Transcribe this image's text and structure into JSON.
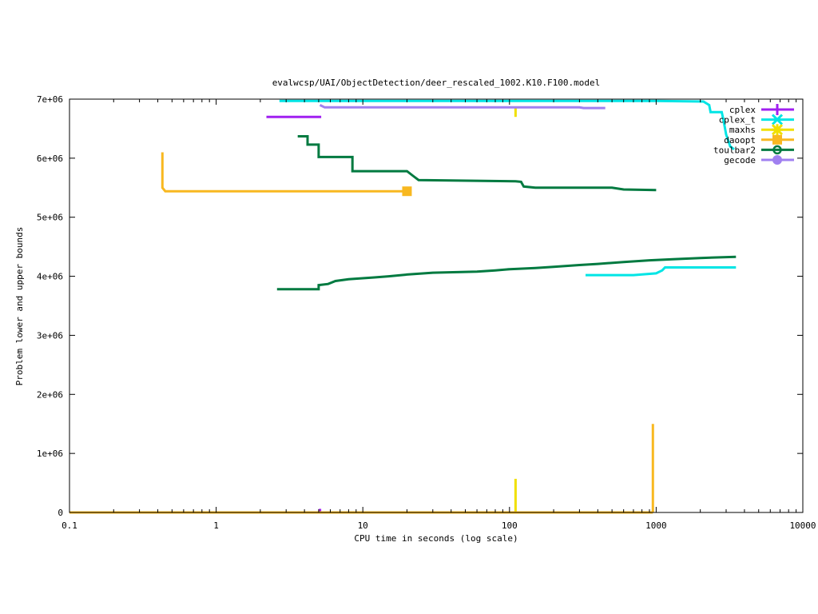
{
  "chart_data": {
    "type": "line",
    "title": "evalwcsp/UAI/ObjectDetection/deer_rescaled_1002.K10.F100.model",
    "xlabel": "CPU time in seconds (log scale)",
    "ylabel": "Problem lower and upper bounds",
    "xscale": "log",
    "xlim": [
      0.1,
      10000
    ],
    "ylim": [
      0,
      7000000
    ],
    "x_ticks": [
      {
        "value": 0.1,
        "label": "0.1"
      },
      {
        "value": 1,
        "label": "1"
      },
      {
        "value": 10,
        "label": "10"
      },
      {
        "value": 100,
        "label": "100"
      },
      {
        "value": 1000,
        "label": "1000"
      },
      {
        "value": 10000,
        "label": "10000"
      }
    ],
    "y_ticks": [
      {
        "value": 0,
        "label": "0"
      },
      {
        "value": 1000000,
        "label": "1e+06"
      },
      {
        "value": 2000000,
        "label": "2e+06"
      },
      {
        "value": 3000000,
        "label": "3e+06"
      },
      {
        "value": 4000000,
        "label": "4e+06"
      },
      {
        "value": 5000000,
        "label": "5e+06"
      },
      {
        "value": 6000000,
        "label": "6e+06"
      },
      {
        "value": 7000000,
        "label": "7e+06"
      }
    ],
    "grid": false,
    "legend_position": "top-right",
    "series": [
      {
        "name": "cplex",
        "color": "#a020f0",
        "marker": "plus",
        "segments": [
          [
            [
              2.2,
              6700000
            ],
            [
              5.2,
              6700000
            ]
          ],
          [
            [
              5.0,
              40000
            ],
            [
              5.2,
              40000
            ]
          ]
        ]
      },
      {
        "name": "cplex_t",
        "color": "#00e5e5",
        "marker": "cross",
        "segments": [
          [
            [
              2.7,
              6970000
            ],
            [
              1000,
              6970000
            ],
            [
              2100,
              6960000
            ],
            [
              2300,
              6900000
            ],
            [
              2350,
              6780000
            ],
            [
              2800,
              6780000
            ],
            [
              2900,
              6600000
            ],
            [
              3000,
              6400000
            ],
            [
              3200,
              6200000
            ],
            [
              3400,
              6150000
            ]
          ],
          [
            [
              330,
              4020000
            ],
            [
              700,
              4020000
            ],
            [
              1000,
              4050000
            ],
            [
              1100,
              4100000
            ],
            [
              1150,
              4150000
            ],
            [
              3500,
              4150000
            ]
          ]
        ]
      },
      {
        "name": "maxhs",
        "color": "#f0e000",
        "marker": "star",
        "segments": [
          [
            [
              110,
              6700000
            ],
            [
              110,
              6850000
            ]
          ],
          [
            [
              110,
              0
            ],
            [
              110,
              570000
            ]
          ]
        ]
      },
      {
        "name": "daoopt",
        "color": "#f8b820",
        "marker": "square",
        "segments": [
          [
            [
              0.43,
              6100000
            ],
            [
              0.43,
              5500000
            ],
            [
              0.45,
              5440000
            ],
            [
              20,
              5440000
            ]
          ],
          [
            [
              0.1,
              0
            ],
            [
              950,
              0
            ]
          ],
          [
            [
              950,
              0
            ],
            [
              950,
              1500000
            ]
          ]
        ]
      },
      {
        "name": "toulbar2",
        "color": "#007a40",
        "marker": "circle",
        "segments": [
          [
            [
              3.6,
              6370000
            ],
            [
              4.2,
              6370000
            ],
            [
              4.2,
              6230000
            ],
            [
              5.0,
              6230000
            ],
            [
              5.0,
              6020000
            ],
            [
              8.5,
              6020000
            ],
            [
              8.5,
              5780000
            ],
            [
              20,
              5780000
            ],
            [
              22,
              5700000
            ],
            [
              24,
              5630000
            ],
            [
              110,
              5610000
            ],
            [
              120,
              5600000
            ],
            [
              125,
              5520000
            ],
            [
              150,
              5500000
            ],
            [
              500,
              5500000
            ],
            [
              600,
              5470000
            ],
            [
              1000,
              5460000
            ]
          ],
          [
            [
              2.6,
              3780000
            ],
            [
              5.0,
              3780000
            ],
            [
              5.0,
              3850000
            ],
            [
              5.8,
              3870000
            ],
            [
              6.5,
              3920000
            ],
            [
              8,
              3950000
            ],
            [
              12,
              3980000
            ],
            [
              15,
              4000000
            ],
            [
              20,
              4030000
            ],
            [
              30,
              4060000
            ],
            [
              60,
              4080000
            ],
            [
              80,
              4100000
            ],
            [
              100,
              4120000
            ],
            [
              150,
              4140000
            ],
            [
              200,
              4160000
            ],
            [
              300,
              4190000
            ],
            [
              400,
              4210000
            ],
            [
              600,
              4240000
            ],
            [
              900,
              4270000
            ],
            [
              1300,
              4290000
            ],
            [
              2000,
              4310000
            ],
            [
              3500,
              4330000
            ]
          ]
        ]
      },
      {
        "name": "gecode",
        "color": "#a080f0",
        "marker": "filled-circle",
        "segments": [
          [
            [
              5.1,
              6900000
            ],
            [
              5.5,
              6860000
            ],
            [
              300,
              6860000
            ],
            [
              320,
              6850000
            ],
            [
              450,
              6850000
            ]
          ]
        ]
      }
    ]
  }
}
